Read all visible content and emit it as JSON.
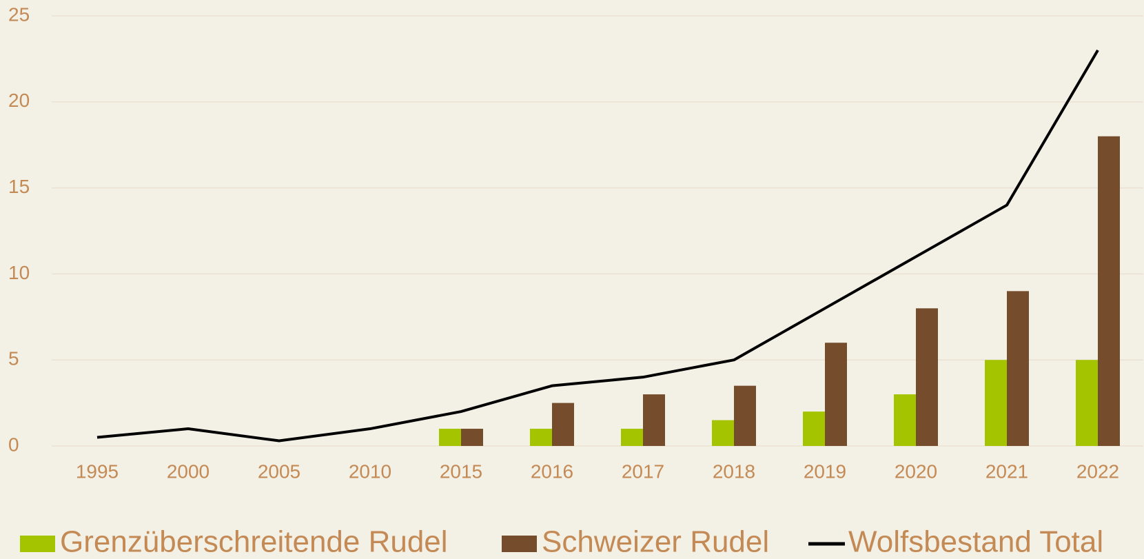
{
  "chart_data": {
    "type": "bar_line",
    "categories": [
      "1995",
      "2000",
      "2005",
      "2010",
      "2015",
      "2016",
      "2017",
      "2018",
      "2019",
      "2020",
      "2021",
      "2022"
    ],
    "series": [
      {
        "name": "Grenzüberschreitende Rudel",
        "type": "bar",
        "color": "#a4c400",
        "values": [
          0,
          0,
          0,
          0,
          1,
          1,
          1,
          1.5,
          2,
          3,
          5,
          5
        ]
      },
      {
        "name": "Schweizer Rudel",
        "type": "bar",
        "color": "#754c2c",
        "values": [
          0,
          0,
          0,
          0,
          1,
          2.5,
          3,
          3.5,
          6,
          8,
          9,
          18
        ]
      },
      {
        "name": "Wolfsbestand Total",
        "type": "line",
        "color": "#000000",
        "values": [
          0.5,
          1,
          0.3,
          1,
          2,
          3.5,
          4,
          5,
          8,
          11,
          14,
          23
        ]
      }
    ],
    "ylim": [
      0,
      25
    ],
    "yticks": [
      0,
      5,
      10,
      15,
      20,
      25
    ],
    "grid": true,
    "legend": "bottom"
  }
}
